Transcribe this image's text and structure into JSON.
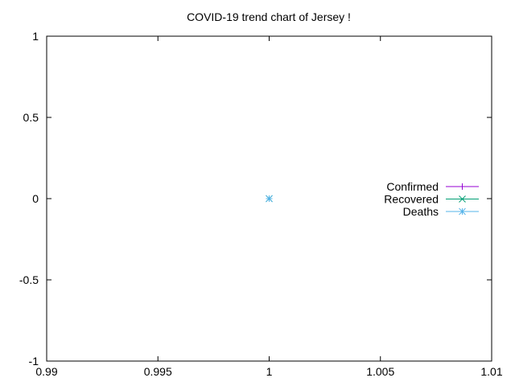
{
  "chart_data": {
    "type": "line",
    "title": "COVID-19 trend chart of Jersey !",
    "xlabel": "",
    "ylabel": "",
    "xlim": [
      0.99,
      1.01
    ],
    "ylim": [
      -1,
      1
    ],
    "xticks": [
      "0.99",
      "0.995",
      "1",
      "1.005",
      "1.01"
    ],
    "yticks": [
      "1",
      "0.5",
      "0",
      "-0.5",
      "-1"
    ],
    "xtick_values": [
      0.99,
      0.995,
      1,
      1.005,
      1.01
    ],
    "ytick_values": [
      1,
      0.5,
      0,
      -0.5,
      -1
    ],
    "grid": false,
    "legend_position": "right",
    "series": [
      {
        "name": "Confirmed",
        "color": "#9400d3",
        "marker": "plus",
        "points": [
          [
            1,
            0
          ]
        ]
      },
      {
        "name": "Recovered",
        "color": "#009e73",
        "marker": "cross",
        "points": [
          [
            1,
            0
          ]
        ]
      },
      {
        "name": "Deaths",
        "color": "#56b4e9",
        "marker": "star",
        "points": [
          [
            1,
            0
          ]
        ]
      }
    ]
  }
}
